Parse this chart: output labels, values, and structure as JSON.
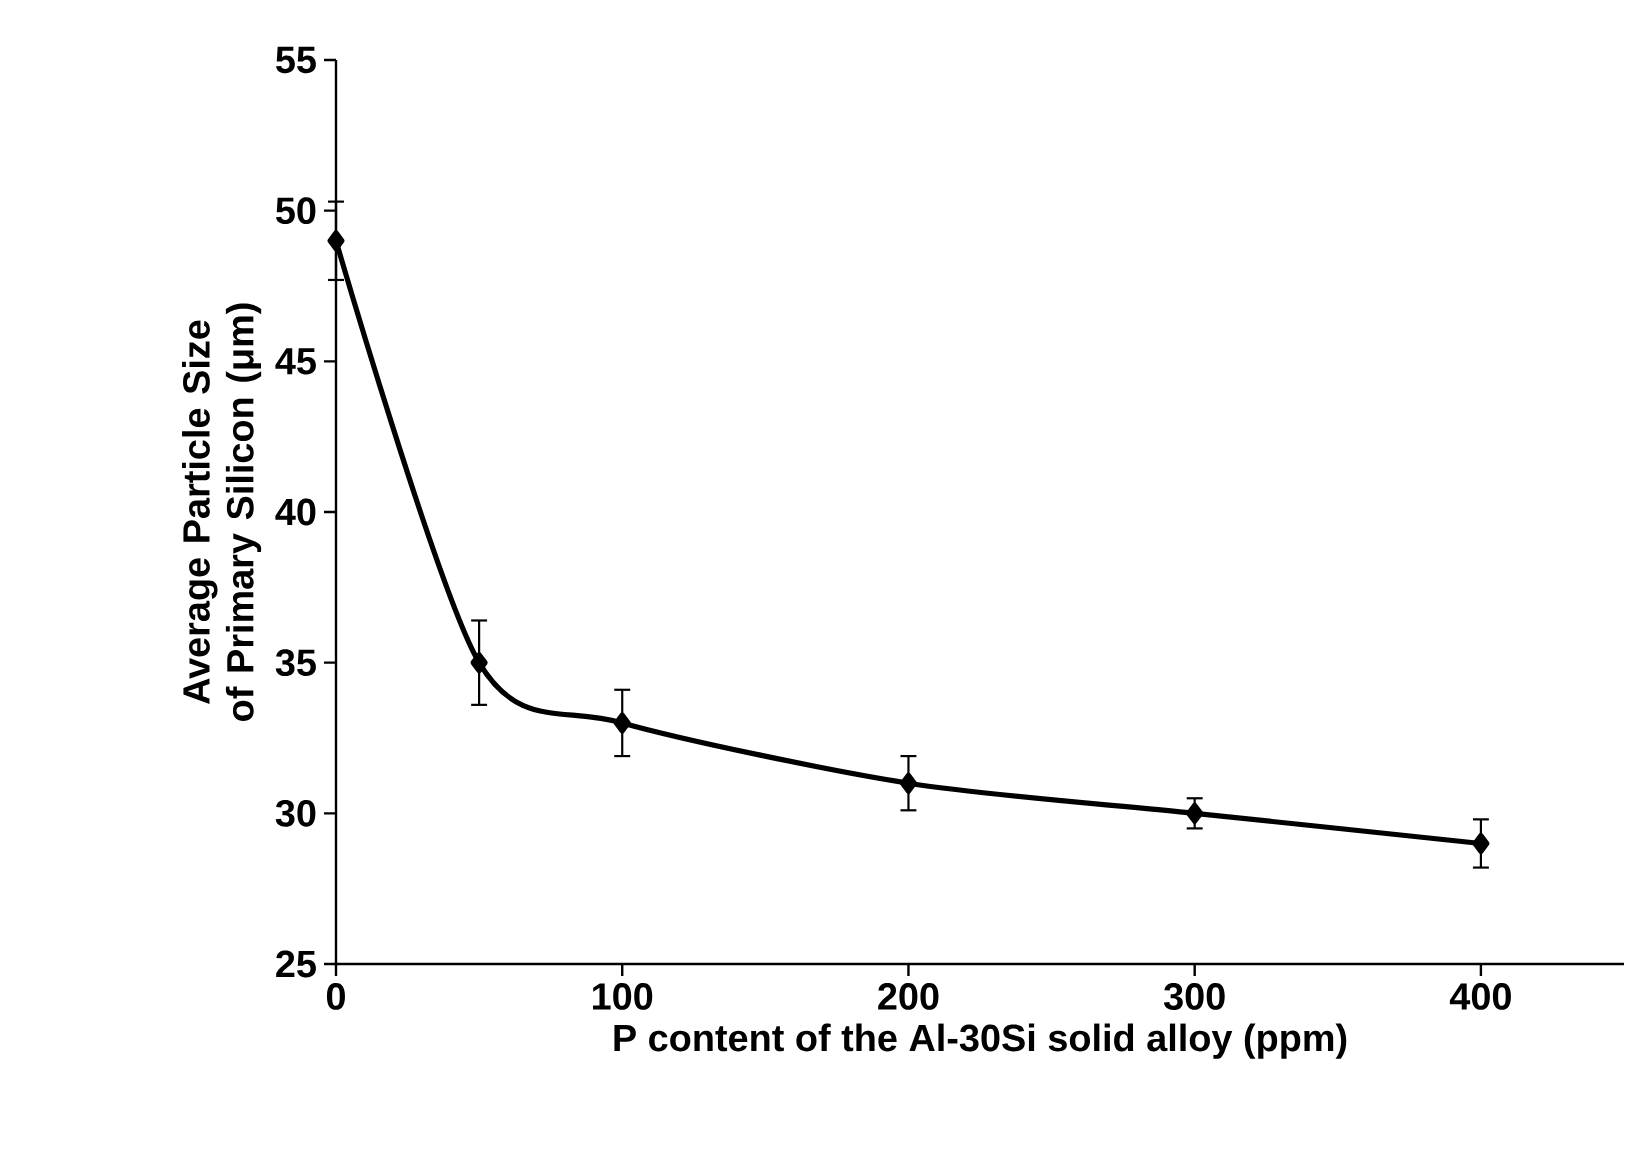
{
  "chart_data": {
    "type": "line",
    "xlabel": "P content of the Al-30Si solid alloy (ppm)",
    "ylabel": "Average Particle Size of Primary Silicon (μm)",
    "x": [
      0,
      50,
      100,
      200,
      300,
      400
    ],
    "series": [
      {
        "color": "#000000",
        "values": [
          49,
          35,
          33,
          31,
          30,
          29
        ],
        "errors": [
          1.3,
          1.4,
          1.1,
          0.9,
          0.5,
          0.8
        ]
      }
    ],
    "xlim": [
      0,
      450
    ],
    "xticks": [
      0,
      100,
      200,
      300,
      400
    ],
    "ylim": [
      25,
      55
    ],
    "yticks": [
      25,
      30,
      35,
      40,
      45,
      50,
      55
    ],
    "marker": "diamond",
    "line_style": "solid",
    "grid": false
  }
}
